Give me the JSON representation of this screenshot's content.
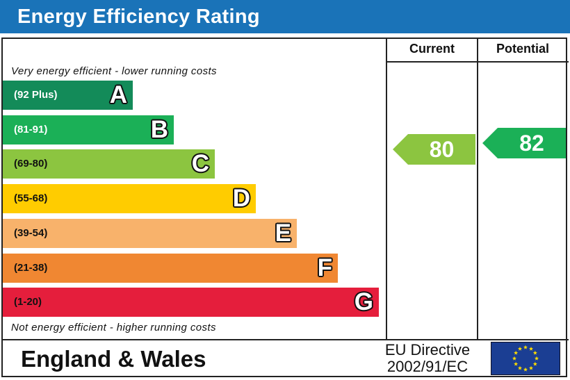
{
  "title": "Energy Efficiency Rating",
  "headers": {
    "current": "Current",
    "potential": "Potential"
  },
  "notes": {
    "top": "Very energy efficient - lower running costs",
    "bottom": "Not energy efficient - higher running costs"
  },
  "footer": {
    "region": "England & Wales",
    "directive_line1": "EU Directive",
    "directive_line2": "2002/91/EC"
  },
  "icons": {
    "eu_flag": "eu-flag-icon"
  },
  "chart_data": {
    "type": "bar",
    "categories": [
      "A",
      "B",
      "C",
      "D",
      "E",
      "F",
      "G"
    ],
    "ranges": [
      "(92 Plus)",
      "(81-91)",
      "(69-80)",
      "(55-68)",
      "(39-54)",
      "(21-38)",
      "(1-20)"
    ],
    "colors": [
      "#138b59",
      "#1bb057",
      "#8cc540",
      "#ffcc00",
      "#f8b26b",
      "#f08732",
      "#e51e3c"
    ],
    "range_text_colors": [
      "#ffffff",
      "#ffffff",
      "#111111",
      "#111111",
      "#111111",
      "#111111",
      "#111111"
    ],
    "current": {
      "value": 80,
      "band": "C",
      "color": "#8cc540"
    },
    "potential": {
      "value": 82,
      "band": "B",
      "color": "#1bb057"
    }
  }
}
